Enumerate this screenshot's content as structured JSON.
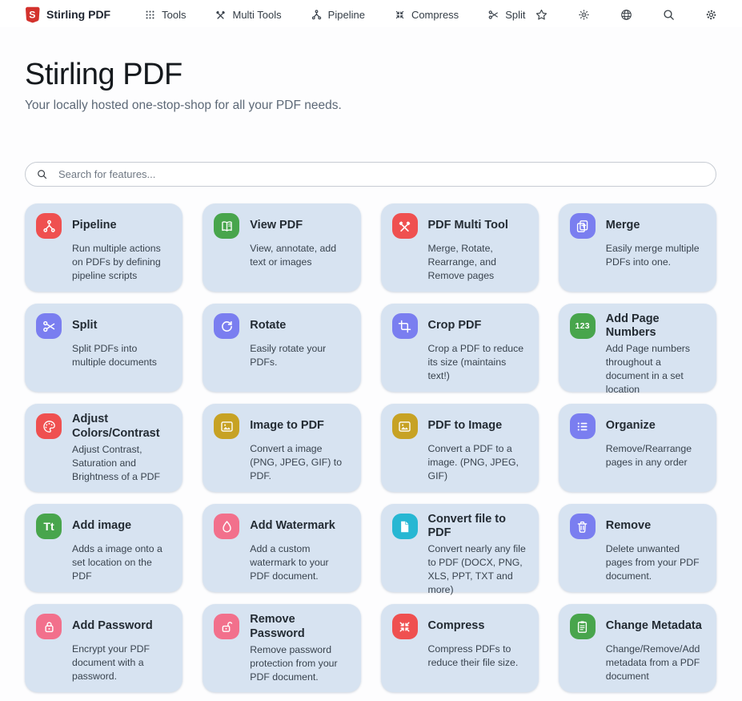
{
  "navbar": {
    "brand": "Stirling PDF",
    "items": [
      {
        "label": "Tools",
        "icon": "grid"
      },
      {
        "label": "Multi Tools",
        "icon": "tools"
      },
      {
        "label": "Pipeline",
        "icon": "pipeline"
      },
      {
        "label": "Compress",
        "icon": "compress"
      },
      {
        "label": "Split",
        "icon": "scissors"
      }
    ],
    "actions": [
      {
        "icon": "star"
      },
      {
        "icon": "sun"
      },
      {
        "icon": "globe"
      },
      {
        "icon": "search"
      },
      {
        "icon": "gear"
      }
    ]
  },
  "header": {
    "title": "Stirling PDF",
    "subtitle": "Your locally hosted one-stop-shop for all your PDF needs."
  },
  "search": {
    "placeholder": "Search for features..."
  },
  "colors": {
    "red": "#EF5050",
    "pink": "#F2708C",
    "green": "#48A54C",
    "indigo": "#7A7EF0",
    "yellow": "#C7A224",
    "cyan": "#27B7D3",
    "card_bg": "#d7e3f1",
    "logo_red": "#D3322D"
  },
  "cards": [
    {
      "title": "Pipeline",
      "desc": "Run multiple actions on PDFs by defining pipeline scripts",
      "icon": "pipeline",
      "color": "red"
    },
    {
      "title": "View PDF",
      "desc": "View, annotate, add text or images",
      "icon": "book",
      "color": "green"
    },
    {
      "title": "PDF Multi Tool",
      "desc": "Merge, Rotate, Rearrange, and Remove pages",
      "icon": "tools",
      "color": "red"
    },
    {
      "title": "Merge",
      "desc": "Easily merge multiple PDFs into one.",
      "icon": "merge",
      "color": "indigo"
    },
    {
      "title": "Split",
      "desc": "Split PDFs into multiple documents",
      "icon": "scissors",
      "color": "indigo"
    },
    {
      "title": "Rotate",
      "desc": "Easily rotate your PDFs.",
      "icon": "rotate",
      "color": "indigo"
    },
    {
      "title": "Crop PDF",
      "desc": "Crop a PDF to reduce its size (maintains text!)",
      "icon": "crop",
      "color": "indigo"
    },
    {
      "title": "Add Page Numbers",
      "desc": "Add Page numbers throughout a document in a set location",
      "icon": "numbers-123",
      "color": "green"
    },
    {
      "title": "Adjust Colors/Contrast",
      "desc": "Adjust Contrast, Saturation and Brightness of a PDF",
      "icon": "palette",
      "color": "red"
    },
    {
      "title": "Image to PDF",
      "desc": "Convert a image (PNG, JPEG, GIF) to PDF.",
      "icon": "image",
      "color": "yellow"
    },
    {
      "title": "PDF to Image",
      "desc": "Convert a PDF to a image. (PNG, JPEG, GIF)",
      "icon": "image",
      "color": "yellow"
    },
    {
      "title": "Organize",
      "desc": "Remove/Rearrange pages in any order",
      "icon": "list",
      "color": "indigo"
    },
    {
      "title": "Add image",
      "desc": "Adds a image onto a set location on the PDF",
      "icon": "text-Tt",
      "color": "green"
    },
    {
      "title": "Add Watermark",
      "desc": "Add a custom watermark to your PDF document.",
      "icon": "droplet",
      "color": "pink"
    },
    {
      "title": "Convert file to PDF",
      "desc": "Convert nearly any file to PDF (DOCX, PNG, XLS, PPT, TXT and more)",
      "icon": "file",
      "color": "cyan"
    },
    {
      "title": "Remove",
      "desc": "Delete unwanted pages from your PDF document.",
      "icon": "trash",
      "color": "indigo"
    },
    {
      "title": "Add Password",
      "desc": "Encrypt your PDF document with a password.",
      "icon": "lock",
      "color": "pink"
    },
    {
      "title": "Remove Password",
      "desc": "Remove password protection from your PDF document.",
      "icon": "unlock",
      "color": "pink"
    },
    {
      "title": "Compress",
      "desc": "Compress PDFs to reduce their file size.",
      "icon": "compress",
      "color": "red"
    },
    {
      "title": "Change Metadata",
      "desc": "Change/Remove/Add metadata from a PDF document",
      "icon": "clipboard",
      "color": "green"
    }
  ]
}
